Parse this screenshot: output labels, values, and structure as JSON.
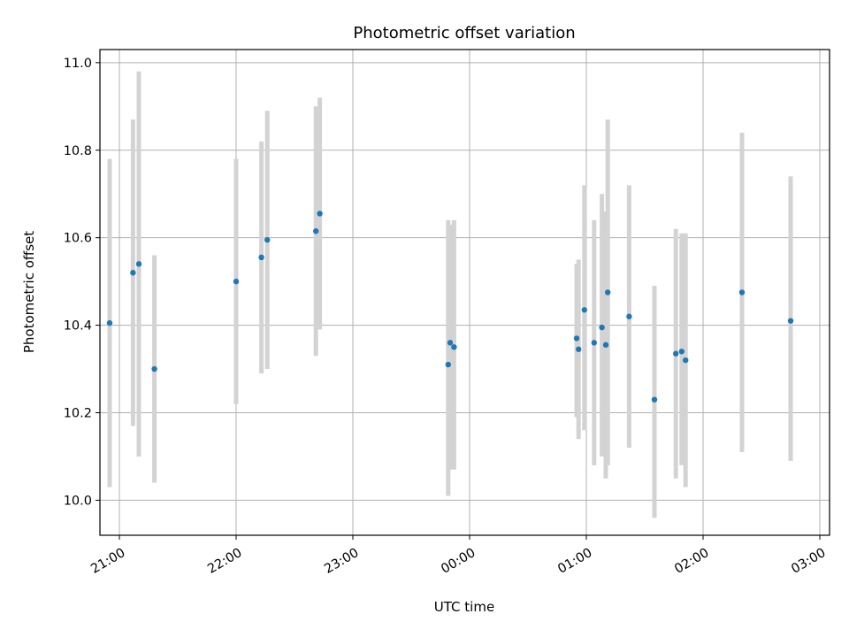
{
  "chart_data": {
    "type": "scatter",
    "title": "Photometric offset variation",
    "xlabel": "UTC time",
    "ylabel": "Photometric offset",
    "xlim": [
      "20:50",
      "03:05"
    ],
    "ylim": [
      9.92,
      11.03
    ],
    "xticks": [
      "21:00",
      "22:00",
      "23:00",
      "00:00",
      "01:00",
      "02:00",
      "03:00"
    ],
    "yticks": [
      "10.0",
      "10.2",
      "10.4",
      "10.6",
      "10.8",
      "11.0"
    ],
    "grid": true,
    "colors": {
      "points": "#1f77b4",
      "errorbars": "#d3d3d3",
      "grid": "#b0b0b0"
    },
    "points": [
      {
        "t": "20:55",
        "y": 10.405,
        "lo": 10.03,
        "hi": 10.78
      },
      {
        "t": "21:07",
        "y": 10.52,
        "lo": 10.17,
        "hi": 10.87
      },
      {
        "t": "21:10",
        "y": 10.54,
        "lo": 10.1,
        "hi": 10.98
      },
      {
        "t": "21:18",
        "y": 10.3,
        "lo": 10.04,
        "hi": 10.56
      },
      {
        "t": "22:00",
        "y": 10.5,
        "lo": 10.22,
        "hi": 10.78
      },
      {
        "t": "22:13",
        "y": 10.555,
        "lo": 10.29,
        "hi": 10.82
      },
      {
        "t": "22:16",
        "y": 10.595,
        "lo": 10.3,
        "hi": 10.89
      },
      {
        "t": "22:41",
        "y": 10.615,
        "lo": 10.33,
        "hi": 10.9
      },
      {
        "t": "22:43",
        "y": 10.655,
        "lo": 10.39,
        "hi": 10.92
      },
      {
        "t": "23:49",
        "y": 10.31,
        "lo": 10.01,
        "hi": 10.64
      },
      {
        "t": "23:50",
        "y": 10.36,
        "lo": 10.07,
        "hi": 10.63
      },
      {
        "t": "23:52",
        "y": 10.35,
        "lo": 10.07,
        "hi": 10.64
      },
      {
        "t": "00:55",
        "y": 10.37,
        "lo": 10.19,
        "hi": 10.54
      },
      {
        "t": "00:56",
        "y": 10.345,
        "lo": 10.14,
        "hi": 10.55
      },
      {
        "t": "00:59",
        "y": 10.435,
        "lo": 10.16,
        "hi": 10.72
      },
      {
        "t": "01:04",
        "y": 10.36,
        "lo": 10.08,
        "hi": 10.64
      },
      {
        "t": "01:08",
        "y": 10.395,
        "lo": 10.1,
        "hi": 10.7
      },
      {
        "t": "01:10",
        "y": 10.355,
        "lo": 10.05,
        "hi": 10.66
      },
      {
        "t": "01:11",
        "y": 10.475,
        "lo": 10.08,
        "hi": 10.87
      },
      {
        "t": "01:22",
        "y": 10.42,
        "lo": 10.12,
        "hi": 10.72
      },
      {
        "t": "01:35",
        "y": 10.23,
        "lo": 9.96,
        "hi": 10.49
      },
      {
        "t": "01:46",
        "y": 10.335,
        "lo": 10.05,
        "hi": 10.62
      },
      {
        "t": "01:49",
        "y": 10.34,
        "lo": 10.08,
        "hi": 10.61
      },
      {
        "t": "01:51",
        "y": 10.32,
        "lo": 10.03,
        "hi": 10.61
      },
      {
        "t": "02:20",
        "y": 10.475,
        "lo": 10.11,
        "hi": 10.84
      },
      {
        "t": "02:45",
        "y": 10.41,
        "lo": 10.09,
        "hi": 10.74
      }
    ]
  }
}
